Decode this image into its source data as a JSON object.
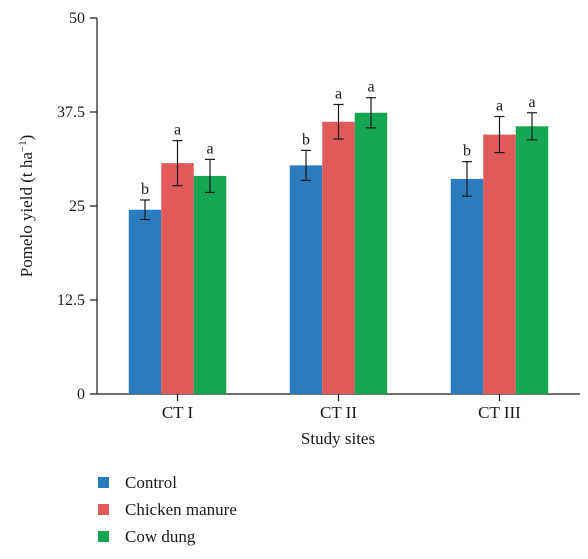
{
  "chart_data": {
    "type": "bar",
    "categories": [
      "CT I",
      "CT II",
      "CT III"
    ],
    "series": [
      {
        "name": "Control",
        "color": "#2b7bbf",
        "values": [
          24.5,
          30.4,
          28.6
        ],
        "errors": [
          1.3,
          2.0,
          2.3
        ],
        "labels": [
          "b",
          "b",
          "b"
        ]
      },
      {
        "name": "Chicken manure",
        "color": "#e05a5a",
        "values": [
          30.7,
          36.2,
          34.5
        ],
        "errors": [
          3.0,
          2.3,
          2.4
        ],
        "labels": [
          "a",
          "a",
          "a"
        ]
      },
      {
        "name": "Cow dung",
        "color": "#14a650",
        "values": [
          29.0,
          37.4,
          35.6
        ],
        "errors": [
          2.2,
          2.0,
          1.8
        ],
        "labels": [
          "a",
          "a",
          "a"
        ]
      }
    ],
    "xlabel": "Study sites",
    "ylabel": "Pomelo yield (t ha",
    "ylabel_sup": "−1",
    "ylabel_end": ")",
    "ylim": [
      0,
      50
    ],
    "yticks": [
      "0",
      "12.5",
      "25",
      "37.5",
      "50"
    ],
    "ytick_values": [
      0,
      12.5,
      25,
      37.5,
      50
    ],
    "legend_position": "bottom-left"
  }
}
